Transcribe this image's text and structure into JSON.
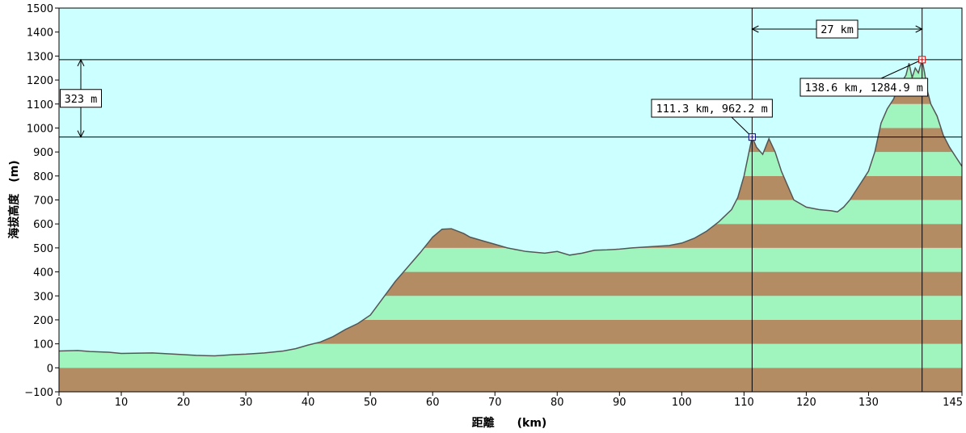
{
  "chart_data": {
    "type": "area",
    "xlabel": "距離　　(km)",
    "ylabel": "海拔高度　(m)",
    "xlim": [
      0,
      145
    ],
    "ylim": [
      -100,
      1500
    ],
    "x_ticks": [
      0,
      10,
      20,
      30,
      40,
      50,
      60,
      70,
      80,
      90,
      100,
      110,
      120,
      130,
      145
    ],
    "x_tick_labels": [
      "0",
      "10",
      "20",
      "30",
      "40",
      "50",
      "60",
      "70",
      "80",
      "90",
      "100",
      "110",
      "120",
      "130",
      "145"
    ],
    "y_ticks": [
      -100,
      0,
      100,
      200,
      300,
      400,
      500,
      600,
      700,
      800,
      900,
      1000,
      1100,
      1200,
      1300,
      1400,
      1500
    ],
    "y_tick_labels": [
      "−100",
      "0",
      "100",
      "200",
      "300",
      "400",
      "500",
      "600",
      "700",
      "800",
      "900",
      "1000",
      "1100",
      "1200",
      "1300",
      "1400",
      "1500"
    ],
    "band_colors": [
      "#b48c64",
      "#a0f5bf"
    ],
    "sky_color": "#ccffff",
    "outline_color": "#555555",
    "profile": {
      "x": [
        0,
        3,
        5,
        8,
        10,
        15,
        20,
        22,
        25,
        28,
        30,
        33,
        36,
        38,
        40,
        42,
        44,
        46,
        48,
        50,
        52,
        54,
        56,
        58,
        60,
        61.5,
        63,
        65,
        66,
        68,
        70,
        72,
        75,
        78,
        80,
        82,
        84,
        86,
        88,
        90,
        92,
        95,
        98,
        100,
        102,
        104,
        105,
        106,
        108,
        109,
        110,
        111.3,
        112,
        113,
        114,
        115,
        116,
        117,
        118,
        120,
        122,
        124,
        125,
        126,
        127,
        128,
        129,
        130,
        131,
        132,
        133,
        134,
        135,
        136,
        136.5,
        137,
        137.5,
        138,
        138.6,
        139,
        139.5,
        140,
        141,
        142,
        143,
        144,
        145
      ],
      "y": [
        70,
        72,
        68,
        65,
        60,
        62,
        55,
        52,
        50,
        55,
        57,
        62,
        70,
        80,
        95,
        108,
        130,
        160,
        185,
        220,
        290,
        360,
        420,
        480,
        545,
        578,
        580,
        560,
        545,
        530,
        515,
        500,
        485,
        478,
        485,
        470,
        478,
        490,
        492,
        495,
        500,
        505,
        510,
        520,
        540,
        570,
        590,
        610,
        660,
        710,
        800,
        962,
        920,
        890,
        955,
        900,
        820,
        760,
        700,
        670,
        660,
        655,
        650,
        670,
        700,
        740,
        780,
        820,
        900,
        1020,
        1080,
        1120,
        1180,
        1220,
        1270,
        1210,
        1250,
        1230,
        1284.9,
        1230,
        1150,
        1100,
        1050,
        970,
        920,
        880,
        840
      ]
    },
    "markers": [
      {
        "x": 111.3,
        "y": 962.2,
        "color": "#000080",
        "label": "111.3 km, 962.2 m"
      },
      {
        "x": 138.6,
        "y": 1284.9,
        "color": "#cc0000",
        "label": "138.6 km, 1284.9 m"
      }
    ],
    "distance_annotation": {
      "from_x": 111.3,
      "to_x": 138.6,
      "label": "27 km"
    },
    "height_annotation": {
      "from_y": 962.2,
      "to_y": 1284.9,
      "label": "323 m"
    }
  }
}
